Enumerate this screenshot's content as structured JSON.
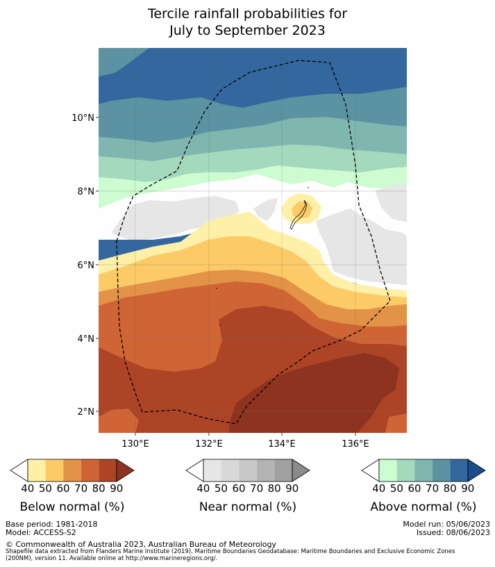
{
  "title": {
    "line1": "Tercile rainfall probabilities for",
    "line2": "July to September 2023"
  },
  "map": {
    "lat_labels": [
      "10°N",
      "8°N",
      "6°N",
      "4°N",
      "2°N"
    ],
    "lon_labels": [
      "130°E",
      "132°E",
      "134°E",
      "136°E"
    ]
  },
  "legends": {
    "below": {
      "label": "Below normal (%)",
      "ticks": [
        "40",
        "50",
        "60",
        "70",
        "80",
        "90"
      ],
      "colors": [
        "#fff0a8",
        "#fdca68",
        "#e39348",
        "#cf6535",
        "#ac4425",
        "#8e3320"
      ]
    },
    "near": {
      "label": "Near normal (%)",
      "ticks": [
        "40",
        "50",
        "60",
        "70",
        "80",
        "90"
      ],
      "colors": [
        "#e6e6e6",
        "#d8d8d8",
        "#c8c8c8",
        "#b4b4b4",
        "#a0a0a0",
        "#8a8a8a"
      ]
    },
    "above": {
      "label": "Above normal (%)",
      "ticks": [
        "40",
        "50",
        "60",
        "70",
        "80",
        "90"
      ],
      "colors": [
        "#ccfcd0",
        "#a5d9be",
        "#80b6b0",
        "#5b93a2",
        "#33679e",
        "#1a4d8a"
      ]
    }
  },
  "footer": {
    "base_period": "Base period: 1981-2018",
    "model": "Model: ACCESS-S2",
    "model_run": "Model run: 05/06/2023",
    "issued": "Issued: 08/06/2023",
    "copyright": "© Commonwealth of Australia 2023, Australian Bureau of Meteorology",
    "shapefile_line1": "Shapefile data extracted from Flanders Marine Institute (2019), Maritime Boundaries Geodatabase: Maritime Boundaries and Exclusive Economic Zones",
    "shapefile_line2": "(200NM), version 11. Available online at http://www.marineregions.org/."
  }
}
